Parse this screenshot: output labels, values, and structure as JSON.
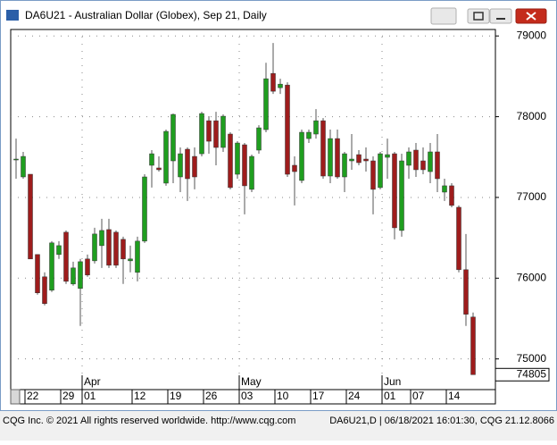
{
  "chart_data": {
    "type": "candlestick",
    "title": "DA6U21 - Australian Dollar (Globex), Sep 21, Daily",
    "categories": [
      null,
      "22",
      null,
      null,
      null,
      null,
      "29",
      null,
      null,
      "01",
      null,
      null,
      null,
      null,
      null,
      null,
      "12",
      null,
      null,
      null,
      null,
      "19",
      null,
      null,
      null,
      null,
      "26",
      null,
      null,
      null,
      null,
      "03",
      null,
      null,
      null,
      null,
      "10",
      null,
      null,
      null,
      null,
      "17",
      null,
      null,
      null,
      null,
      "24",
      null,
      null,
      null,
      null,
      "01",
      null,
      null,
      null,
      "07",
      null,
      null,
      null,
      null,
      "14",
      null,
      null,
      null,
      null
    ],
    "months": [
      {
        "index": 9,
        "label": "Apr"
      },
      {
        "index": 31,
        "label": "May"
      },
      {
        "index": 51,
        "label": "Jun"
      }
    ],
    "open": [
      77475,
      77254,
      77287,
      76293,
      76017,
      75851,
      76293,
      76569,
      75928,
      75873,
      76238,
      76215,
      76403,
      76602,
      76569,
      76481,
      76215,
      76072,
      76459,
      77398,
      77365,
      77177,
      77453,
      77254,
      77597,
      77508,
      77541,
      77950,
      77950,
      77619,
      77785,
      77287,
      77652,
      77100,
      77586,
      77840,
      78536,
      78359,
      78392,
      77398,
      77210,
      77729,
      77785,
      77950,
      77265,
      77729,
      77254,
      77453,
      77530,
      77475,
      77453,
      77122,
      77497,
      77541,
      76591,
      77398,
      77586,
      77453,
      77320,
      77564,
      77066,
      77144,
      76878,
      76105,
      75519
    ],
    "high": [
      77729,
      77564,
      77287,
      76293,
      76072,
      76459,
      76459,
      76591,
      76204,
      76238,
      76293,
      76624,
      76735,
      76735,
      76591,
      76514,
      76403,
      76514,
      77287,
      77586,
      77508,
      77840,
      78039,
      77619,
      77619,
      77619,
      78061,
      78006,
      78061,
      78028,
      77807,
      77696,
      77674,
      77530,
      77895,
      78668,
      78912,
      78470,
      78425,
      77508,
      77840,
      77840,
      78094,
      77983,
      77840,
      77840,
      77564,
      77785,
      77586,
      77619,
      77508,
      77564,
      77729,
      77564,
      77541,
      77619,
      77674,
      77619,
      77674,
      77785,
      77232,
      77177,
      76901,
      76547,
      75575
    ],
    "low": [
      77232,
      77232,
      76238,
      75796,
      75663,
      75829,
      76238,
      75928,
      75906,
      75409,
      76017,
      76182,
      76127,
      76127,
      76127,
      75928,
      76072,
      75961,
      76437,
      77122,
      77320,
      77144,
      77177,
      77066,
      76956,
      77100,
      77508,
      77541,
      77398,
      77564,
      77100,
      77232,
      76790,
      77066,
      77541,
      77807,
      78282,
      78282,
      77254,
      76901,
      77177,
      77674,
      77729,
      77232,
      77177,
      77232,
      77066,
      77343,
      77398,
      77320,
      76790,
      77100,
      77232,
      76481,
      76514,
      77232,
      77254,
      77287,
      77177,
      77066,
      76956,
      76878,
      76072,
      75409,
      74805
    ],
    "close": [
      77475,
      77508,
      76238,
      75818,
      75685,
      76437,
      76403,
      75961,
      76127,
      76204,
      76039,
      76547,
      76591,
      76160,
      76160,
      76238,
      76238,
      76459,
      77254,
      77541,
      77343,
      77818,
      78028,
      77541,
      77232,
      77254,
      78039,
      77696,
      77619,
      78006,
      77122,
      77674,
      77144,
      77508,
      77862,
      78470,
      78315,
      78403,
      77287,
      77320,
      77807,
      77807,
      77950,
      77265,
      77729,
      77254,
      77541,
      77475,
      77431,
      77453,
      77100,
      77541,
      77530,
      76624,
      77453,
      77564,
      77343,
      77343,
      77564,
      77232,
      77144,
      76901,
      76105,
      75553,
      74805
    ],
    "up_color": "#1f9e1f",
    "down_color": "#9e1c1c",
    "last_price": 74805,
    "ylim": [
      74620,
      79080
    ],
    "yticks": [
      75000,
      76000,
      77000,
      78000,
      79000
    ],
    "grid": true
  },
  "footer": {
    "left": "CQG Inc. © 2021 All rights reserved worldwide. http://www.cqg.com",
    "right": "DA6U21,D | 06/18/2021 16:01:30, CQG 21.12.8066"
  }
}
